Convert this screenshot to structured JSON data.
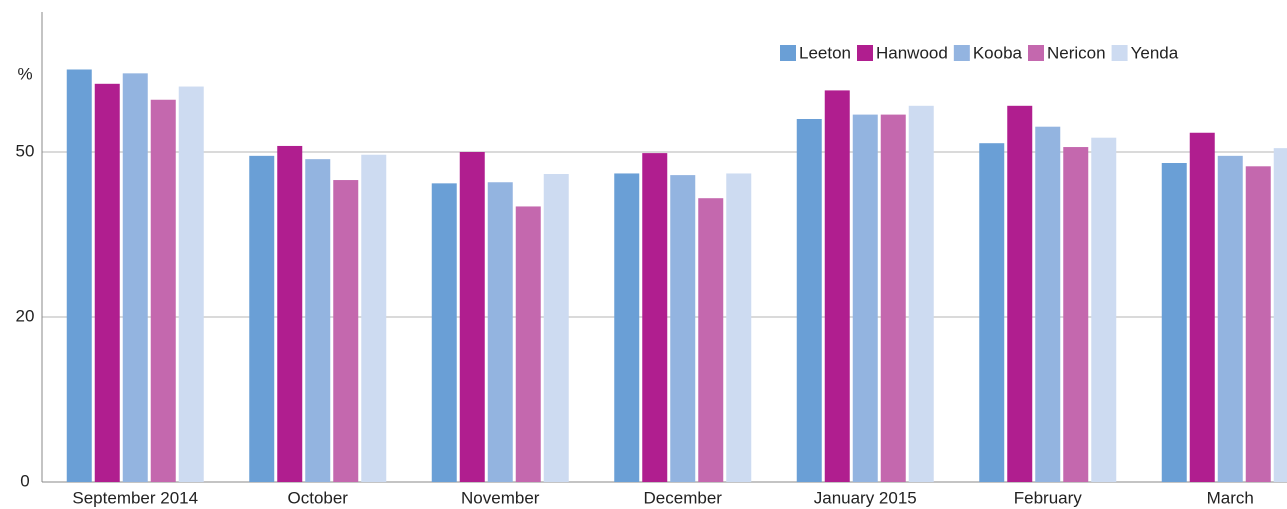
{
  "chart_data": {
    "type": "bar",
    "y_label": "%",
    "categories": [
      "September 2014",
      "October",
      "November",
      "December",
      "January 2015",
      "February",
      "March"
    ],
    "series": [
      {
        "name": "Leeton",
        "color": "#6a9fd6",
        "values": [
          65.0,
          49.3,
          44.3,
          46.1,
          56.0,
          51.6,
          48.0
        ]
      },
      {
        "name": "Hanwood",
        "color": "#b01e8f",
        "values": [
          62.4,
          51.1,
          50.0,
          49.8,
          61.2,
          58.4,
          53.5
        ]
      },
      {
        "name": "Kooba",
        "color": "#93b4e0",
        "values": [
          64.3,
          48.7,
          44.5,
          45.8,
          56.8,
          54.6,
          49.3
        ]
      },
      {
        "name": "Nericon",
        "color": "#c468ae",
        "values": [
          59.5,
          44.9,
          40.1,
          41.6,
          56.8,
          50.9,
          47.4
        ]
      },
      {
        "name": "Yenda",
        "color": "#cddbf1",
        "values": [
          61.9,
          49.5,
          46.0,
          46.1,
          58.4,
          52.6,
          50.7
        ]
      }
    ],
    "ylim": [
      0,
      76
    ],
    "yticks": [
      0,
      20,
      50
    ],
    "grid": true,
    "legend": "top-right"
  }
}
